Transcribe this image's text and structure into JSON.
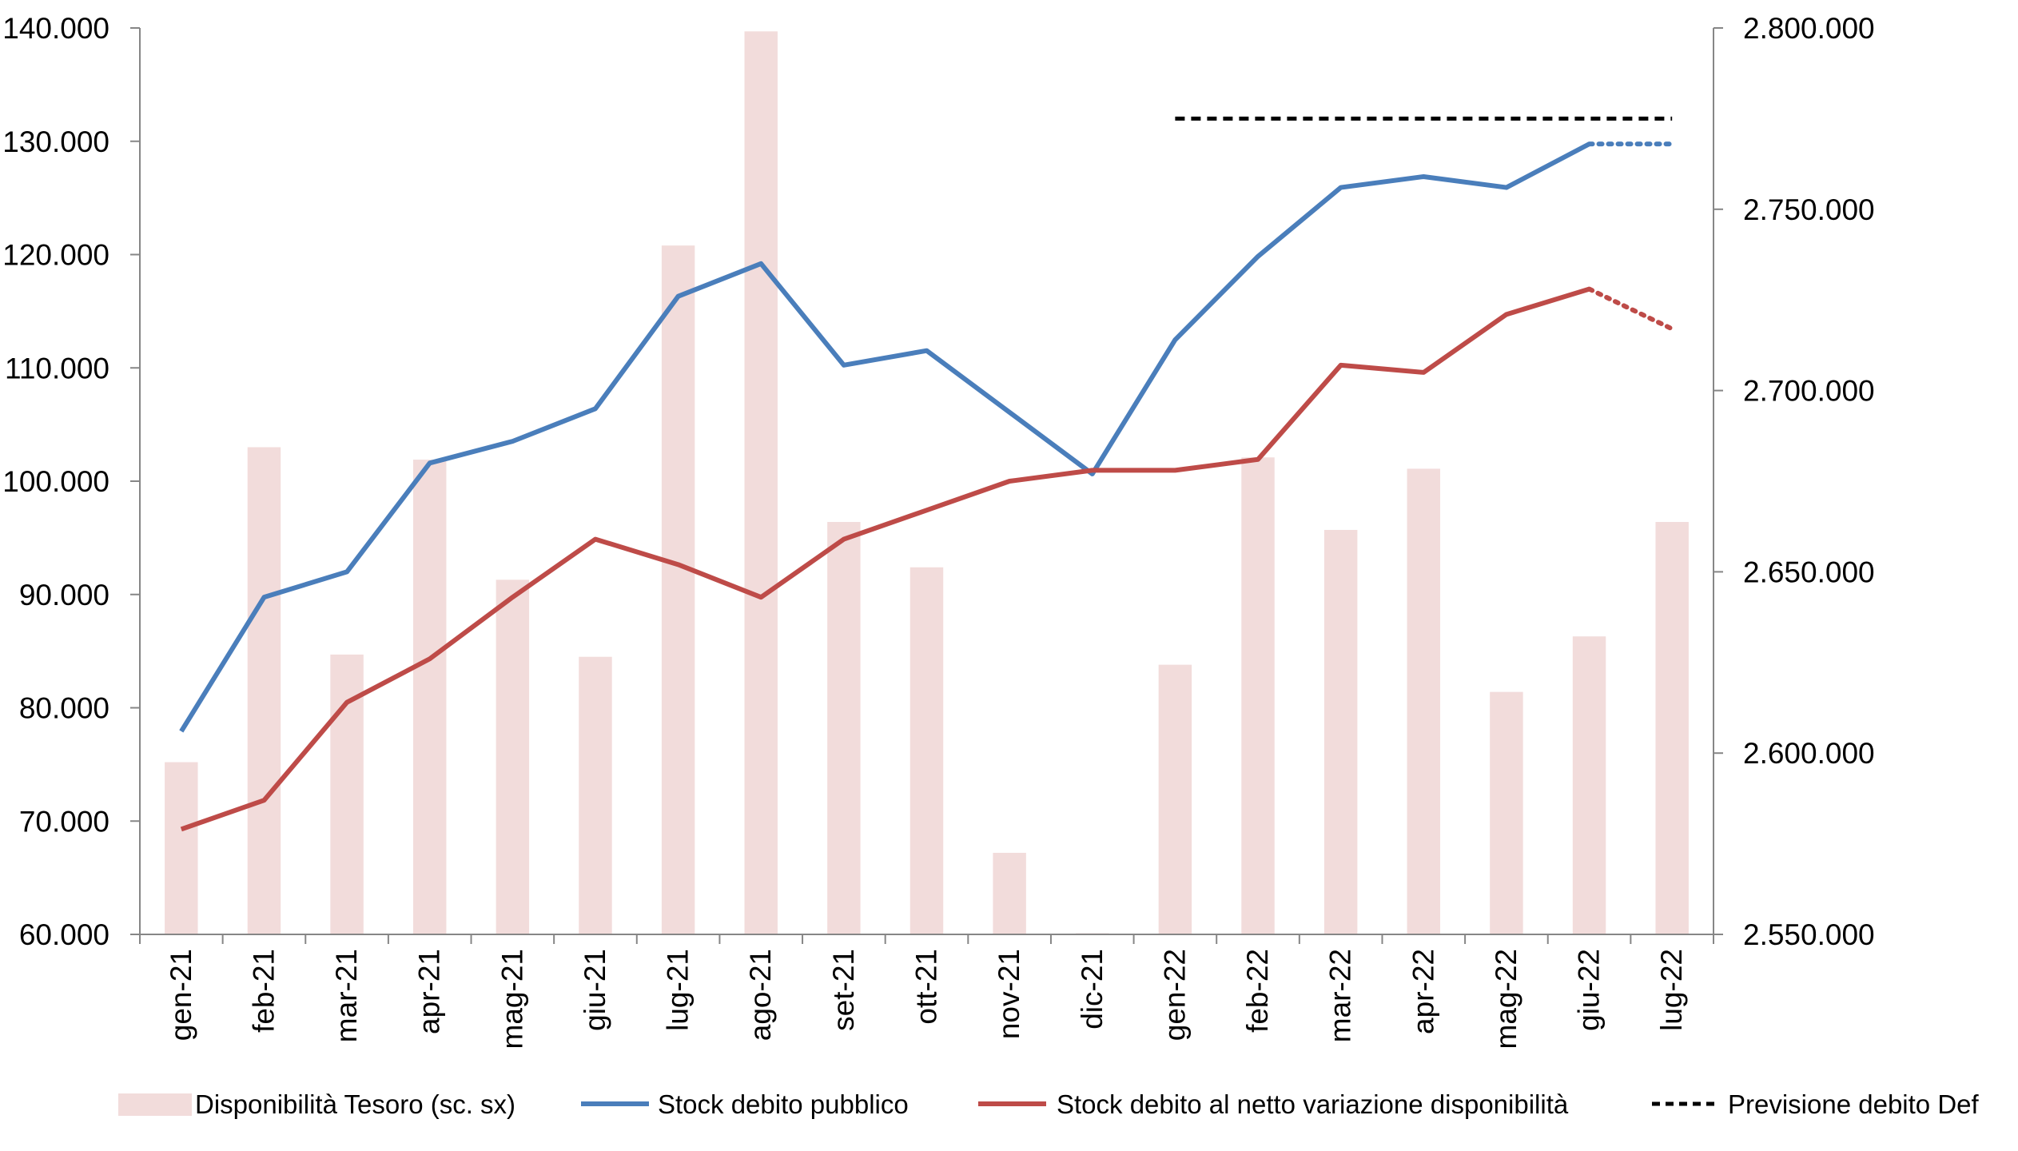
{
  "chart_data": {
    "type": "bar+line",
    "categories": [
      "gen-21",
      "feb-21",
      "mar-21",
      "apr-21",
      "mag-21",
      "giu-21",
      "lug-21",
      "ago-21",
      "set-21",
      "ott-21",
      "nov-21",
      "dic-21",
      "gen-22",
      "feb-22",
      "mar-22",
      "apr-22",
      "mag-22",
      "giu-22",
      "lug-22"
    ],
    "y_left": {
      "range": [
        60000,
        140000
      ],
      "ticks": [
        "60.000",
        "70.000",
        "80.000",
        "90.000",
        "100.000",
        "110.000",
        "120.000",
        "130.000",
        "140.000"
      ],
      "tick_values": [
        60000,
        70000,
        80000,
        90000,
        100000,
        110000,
        120000,
        130000,
        140000
      ]
    },
    "y_right": {
      "range": [
        2550000,
        2800000
      ],
      "ticks": [
        "2.550.000",
        "2.600.000",
        "2.650.000",
        "2.700.000",
        "2.750.000",
        "2.800.000"
      ],
      "tick_values": [
        2550000,
        2600000,
        2650000,
        2700000,
        2750000,
        2800000
      ]
    },
    "series": [
      {
        "name": "Disponibilità Tesoro (sc. sx)",
        "type": "bar",
        "axis": "left",
        "color": "#f2dcdb",
        "values": [
          75200,
          103000,
          84700,
          101900,
          91300,
          84500,
          120800,
          139700,
          96400,
          92400,
          67200,
          60100,
          83800,
          102100,
          95700,
          101100,
          81400,
          86300,
          96400
        ]
      },
      {
        "name": "Stock debito pubblico",
        "type": "line",
        "axis": "right",
        "color": "#4a7ebb",
        "values": [
          2606000,
          2643000,
          2650000,
          2680000,
          2686000,
          2695000,
          2726000,
          2735000,
          2707000,
          2711000,
          2694000,
          2677000,
          2714000,
          2737000,
          2756000,
          2759000,
          2756000,
          2768000,
          null
        ],
        "projection": {
          "from_index": 17,
          "to_index": 18,
          "values": [
            2768000,
            2768000
          ],
          "style": "dotted"
        }
      },
      {
        "name": "Stock debito al netto variazione disponibilità",
        "type": "line",
        "axis": "right",
        "color": "#be4b48",
        "values": [
          2579000,
          2587000,
          2614000,
          2626000,
          2643000,
          2659000,
          2652000,
          2643000,
          2659000,
          2667000,
          2675000,
          2678000,
          2678000,
          2681000,
          2707000,
          2705000,
          2721000,
          2728000,
          null
        ],
        "projection": {
          "from_index": 17,
          "to_index": 18,
          "values": [
            2728000,
            2717000
          ],
          "style": "dotted"
        }
      },
      {
        "name": "Previsione debito Def",
        "type": "line",
        "axis": "right",
        "color": "#000000",
        "style": "dashed",
        "from_index": 12,
        "to_index": 18,
        "value": 2775000
      }
    ],
    "legend_position": "bottom",
    "grid": false
  }
}
